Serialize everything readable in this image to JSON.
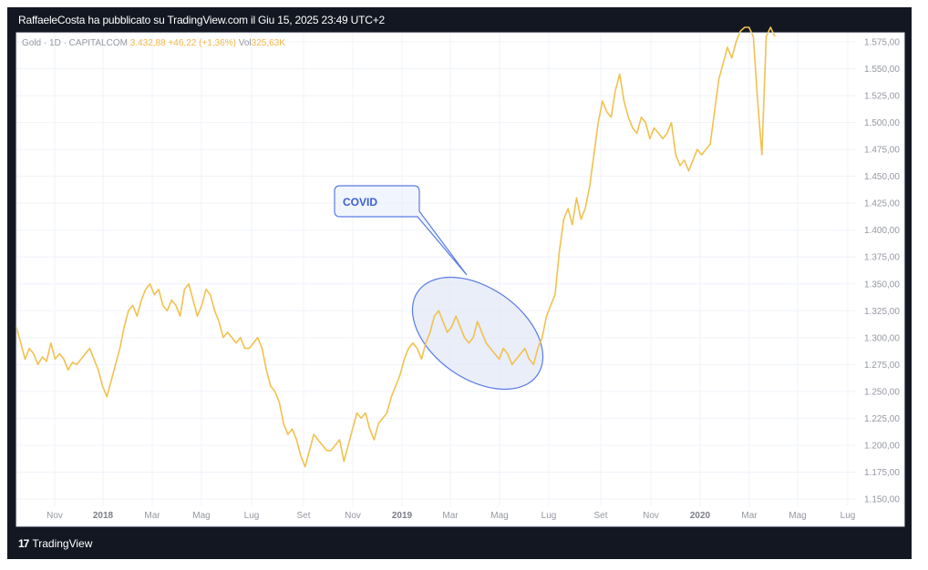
{
  "header": {
    "title": "RaffaeleCosta ha pubblicato su TradingView.com il Giu 15, 2025 23:49 UTC+2"
  },
  "legend": {
    "symbol": "Gold · 1D · CAPITALCOM",
    "price": "3.432,88",
    "change": "+46,22 (+1,36%)",
    "vol_label": "Vol",
    "vol_value": "325,63K"
  },
  "annotation": {
    "label": "COVID"
  },
  "footer": {
    "brand": "TradingView",
    "logo_icon": "tradingview-logo-icon"
  },
  "colors": {
    "line": "#f2c14e",
    "callout_border": "#5b7ce6",
    "callout_fill": "#e8eefc",
    "ellipse_fill": "#dfe7f7",
    "grid": "#f0f3fa"
  },
  "chart_data": {
    "type": "line",
    "title": "",
    "xlabel": "",
    "ylabel": "",
    "ylim": [
      1150,
      1585
    ],
    "grid": true,
    "legend_position": "top-left",
    "x_tick_labels": [
      {
        "label": "Nov",
        "bold": false
      },
      {
        "label": "2018",
        "bold": true
      },
      {
        "label": "Mar",
        "bold": false
      },
      {
        "label": "Mag",
        "bold": false
      },
      {
        "label": "Lug",
        "bold": false
      },
      {
        "label": "Set",
        "bold": false
      },
      {
        "label": "Nov",
        "bold": false
      },
      {
        "label": "2019",
        "bold": true
      },
      {
        "label": "Mar",
        "bold": false
      },
      {
        "label": "Mag",
        "bold": false
      },
      {
        "label": "Lug",
        "bold": false
      },
      {
        "label": "Set",
        "bold": false
      },
      {
        "label": "Nov",
        "bold": false
      },
      {
        "label": "2020",
        "bold": true
      },
      {
        "label": "Mar",
        "bold": false
      },
      {
        "label": "Mag",
        "bold": false
      },
      {
        "label": "Lug",
        "bold": false
      }
    ],
    "y_tick_values": [
      1575,
      1550,
      1525,
      1500,
      1475,
      1450,
      1425,
      1400,
      1375,
      1350,
      1325,
      1300,
      1275,
      1250,
      1225,
      1200,
      1175,
      1150
    ],
    "y_tick_labels": [
      "1.575,00",
      "1.550,00",
      "1.525,00",
      "1.500,00",
      "1.475,00",
      "1.450,00",
      "1.425,00",
      "1.400,00",
      "1.375,00",
      "1.350,00",
      "1.325,00",
      "1.300,00",
      "1.275,00",
      "1.250,00",
      "1.225,00",
      "1.200,00",
      "1.175,00",
      "1.150,00"
    ],
    "series": [
      {
        "values": [
          1310,
          1295,
          1280,
          1290,
          1285,
          1275,
          1282,
          1278,
          1295,
          1280,
          1285,
          1280,
          1270,
          1277,
          1275,
          1280,
          1285,
          1290,
          1280,
          1270,
          1255,
          1245,
          1260,
          1275,
          1290,
          1310,
          1325,
          1330,
          1320,
          1335,
          1345,
          1350,
          1340,
          1345,
          1330,
          1325,
          1335,
          1330,
          1320,
          1345,
          1350,
          1335,
          1320,
          1330,
          1345,
          1340,
          1325,
          1315,
          1300,
          1305,
          1300,
          1295,
          1300,
          1290,
          1290,
          1295,
          1300,
          1290,
          1270,
          1255,
          1250,
          1240,
          1220,
          1210,
          1215,
          1205,
          1190,
          1180,
          1195,
          1210,
          1205,
          1200,
          1195,
          1195,
          1200,
          1205,
          1185,
          1200,
          1215,
          1230,
          1225,
          1230,
          1215,
          1205,
          1220,
          1225,
          1230,
          1245,
          1255,
          1265,
          1280,
          1290,
          1295,
          1290,
          1280,
          1295,
          1305,
          1320,
          1325,
          1315,
          1305,
          1310,
          1320,
          1310,
          1300,
          1295,
          1300,
          1315,
          1305,
          1295,
          1290,
          1285,
          1280,
          1290,
          1285,
          1275,
          1280,
          1285,
          1290,
          1280,
          1275,
          1290,
          1300,
          1320,
          1330,
          1340,
          1380,
          1410,
          1420,
          1405,
          1430,
          1410,
          1420,
          1440,
          1470,
          1500,
          1520,
          1510,
          1505,
          1530,
          1545,
          1520,
          1505,
          1495,
          1490,
          1505,
          1500,
          1485,
          1495,
          1490,
          1485,
          1490,
          1500,
          1470,
          1460,
          1465,
          1455,
          1465,
          1475,
          1470,
          1475,
          1480,
          1510,
          1540,
          1555,
          1570,
          1560,
          1575,
          1585,
          1590,
          1600,
          1580,
          1520,
          1470,
          1580,
          1600,
          1580
        ]
      }
    ]
  }
}
